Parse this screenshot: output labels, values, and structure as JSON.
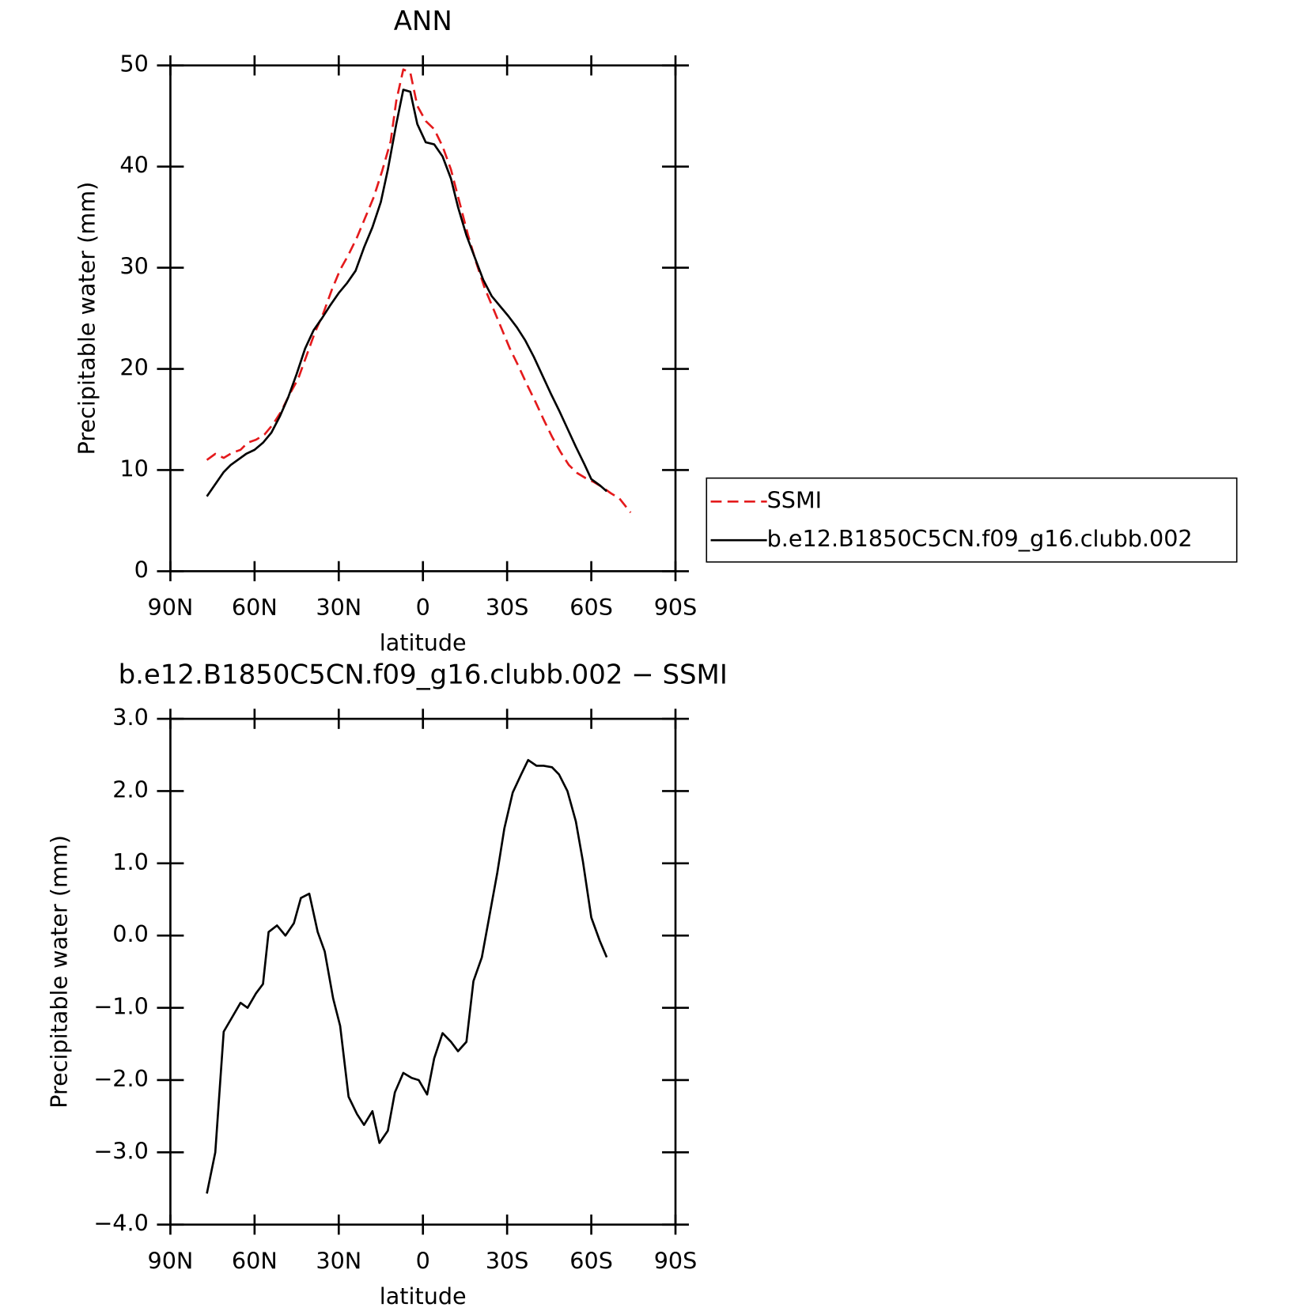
{
  "chart_data": [
    {
      "type": "line",
      "title": "ANN",
      "xlabel": "latitude",
      "ylabel": "Precipitable water (mm)",
      "xlim": [
        90,
        -90
      ],
      "xticks": [
        {
          "value": 90,
          "label": "90N"
        },
        {
          "value": 60,
          "label": "60N"
        },
        {
          "value": 30,
          "label": "30N"
        },
        0,
        {
          "value": -30,
          "label": "30S"
        },
        {
          "value": -60,
          "label": "60S"
        },
        {
          "value": -90,
          "label": "90S"
        }
      ],
      "ylim": [
        0,
        50
      ],
      "yticks": [
        0,
        10,
        20,
        30,
        40,
        50
      ],
      "legend": "right",
      "series": [
        {
          "name": "SSMI",
          "color": "#e41a1c",
          "dashed": true,
          "x": [
            77,
            74,
            71,
            68,
            65,
            62.5,
            59.5,
            56.5,
            53.5,
            50.5,
            47.5,
            44.5,
            41.5,
            38.5,
            35.5,
            32.5,
            29.5,
            26.5,
            23.5,
            20.5,
            17.5,
            14.5,
            11.5,
            9.5,
            7,
            4.5,
            2,
            -1,
            -4,
            -7,
            -10,
            -13,
            -16,
            -19,
            -22,
            -25,
            -28,
            -31,
            -34,
            -37,
            -40,
            -43,
            -46,
            -49,
            -52,
            -55,
            -58,
            -61,
            -64,
            -67,
            -70,
            -72,
            -74
          ],
          "values": [
            11.0,
            11.6,
            11.2,
            11.7,
            12.0,
            12.7,
            13.0,
            13.5,
            14.5,
            15.8,
            17.5,
            19.0,
            21.3,
            23.6,
            25.5,
            27.8,
            29.8,
            31.3,
            33.0,
            35.0,
            37.0,
            39.6,
            42.5,
            46.5,
            49.6,
            49.3,
            46.0,
            44.5,
            43.7,
            42.0,
            39.7,
            36.5,
            33.3,
            30.5,
            28.0,
            26.0,
            24.0,
            22.0,
            20.3,
            18.5,
            16.8,
            15.0,
            13.3,
            11.8,
            10.5,
            9.7,
            9.2,
            8.8,
            8.3,
            7.7,
            7.2,
            6.5,
            5.8
          ]
        },
        {
          "name": "b.e12.B1850C5CN.f09_g16.clubb.002",
          "color": "#000000",
          "dashed": false,
          "x": [
            77,
            71,
            68.5,
            63,
            60,
            57,
            54,
            51,
            48,
            45,
            42,
            39,
            36,
            33,
            30,
            27,
            24,
            21,
            18,
            15,
            12.5,
            9.5,
            7,
            4.5,
            2,
            -1,
            -4,
            -7,
            -10,
            -12.5,
            -15.5,
            -18.5,
            -21.5,
            -24.5,
            -27.5,
            -30.5,
            -33.5,
            -36.5,
            -39.5,
            -42.5,
            -45.5,
            -48.5,
            -51.5,
            -54.5,
            -57.5,
            -60,
            -63,
            -65.5
          ],
          "values": [
            7.4,
            9.8,
            10.5,
            11.6,
            12.0,
            12.7,
            13.7,
            15.3,
            17.2,
            19.5,
            22.0,
            23.8,
            25.0,
            26.3,
            27.5,
            28.5,
            29.7,
            32.0,
            34.0,
            36.5,
            39.7,
            44.2,
            47.6,
            47.4,
            44.2,
            42.4,
            42.2,
            41.0,
            38.8,
            36.0,
            33.2,
            31.0,
            28.8,
            27.2,
            26.2,
            25.2,
            24.1,
            22.8,
            21.2,
            19.4,
            17.6,
            15.9,
            14.1,
            12.3,
            10.6,
            9.1,
            8.5,
            7.9
          ]
        }
      ]
    },
    {
      "type": "line",
      "title": "b.e12.B1850C5CN.f09_g16.clubb.002 − SSMI",
      "xlabel": "latitude",
      "ylabel": "Precipitable water (mm)",
      "xlim": [
        90,
        -90
      ],
      "xticks": [
        {
          "value": 90,
          "label": "90N"
        },
        {
          "value": 60,
          "label": "60N"
        },
        {
          "value": 30,
          "label": "30N"
        },
        0,
        {
          "value": -30,
          "label": "30S"
        },
        {
          "value": -60,
          "label": "60S"
        },
        {
          "value": -90,
          "label": "90S"
        }
      ],
      "ylim": [
        -4,
        3
      ],
      "yticks": [
        {
          "value": -4,
          "label": "−4.0"
        },
        {
          "value": -3,
          "label": "−3.0"
        },
        {
          "value": -2,
          "label": "−2.0"
        },
        {
          "value": -1,
          "label": "−1.0"
        },
        {
          "value": 0,
          "label": "0.0"
        },
        {
          "value": 1,
          "label": "1.0"
        },
        {
          "value": 2,
          "label": "2.0"
        },
        {
          "value": 3,
          "label": "3.0"
        }
      ],
      "series": [
        {
          "color": "#000000",
          "dashed": false,
          "x": [
            77,
            74,
            71,
            68,
            65,
            62.5,
            59.5,
            57,
            55,
            52,
            49,
            46,
            43.5,
            40.5,
            37.5,
            35,
            32,
            29.5,
            26.5,
            23.5,
            21,
            18,
            15.5,
            12.5,
            10,
            7,
            4,
            1.5,
            -1.5,
            -4,
            -7,
            -10,
            -12.5,
            -15.5,
            -18,
            -21,
            -23.5,
            -26.5,
            -29,
            -32,
            -35,
            -37.5,
            -40.5,
            -43,
            -46,
            -48.5,
            -51.5,
            -54.5,
            -57,
            -60,
            -63,
            -65.5
          ],
          "values": [
            -3.57,
            -3.0,
            -1.33,
            -1.13,
            -0.93,
            -1.0,
            -0.8,
            -0.67,
            0.05,
            0.14,
            0.0,
            0.17,
            0.52,
            0.58,
            0.05,
            -0.22,
            -0.87,
            -1.25,
            -2.23,
            -2.47,
            -2.62,
            -2.43,
            -2.87,
            -2.7,
            -2.17,
            -1.9,
            -1.97,
            -2.0,
            -2.2,
            -1.7,
            -1.35,
            -1.47,
            -1.6,
            -1.47,
            -0.63,
            -0.3,
            0.23,
            0.87,
            1.48,
            1.98,
            2.23,
            2.43,
            2.35,
            2.35,
            2.33,
            2.23,
            2.0,
            1.58,
            1.03,
            0.25,
            -0.07,
            -0.3
          ]
        }
      ]
    }
  ]
}
